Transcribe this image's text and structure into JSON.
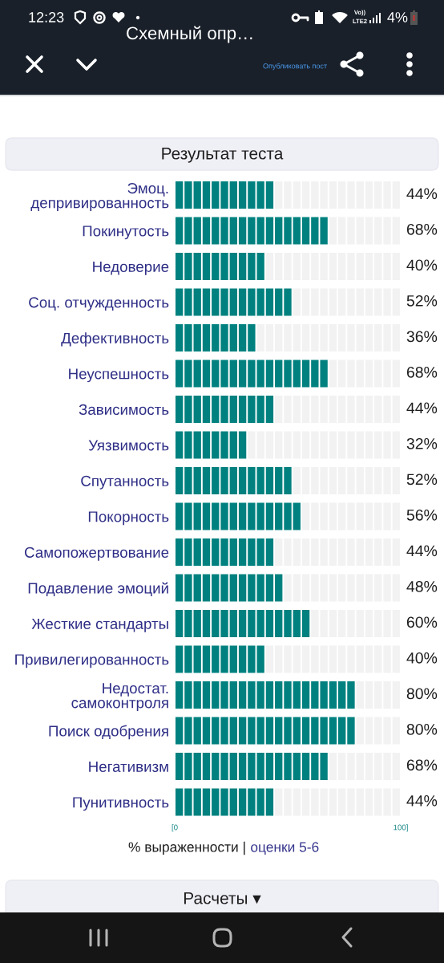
{
  "chart_data": {
    "type": "bar",
    "orientation": "horizontal",
    "stacked": true,
    "title": "Результат теста",
    "categories": [
      "Эмоц.\nдепривированность",
      "Покинутость",
      "Недоверие",
      "Соц. отчужденность",
      "Дефективность",
      "Неуспешность",
      "Зависимость",
      "Уязвимость",
      "Спутанность",
      "Покорность",
      "Самопожертвование",
      "Подавление эмоций",
      "Жесткие стандарты",
      "Привилегированность",
      "Недостат.\nсамоконтроля",
      "Поиск одобрения",
      "Негативизм",
      "Пунитивность"
    ],
    "series": [
      {
        "color": "#00817f",
        "values": [
          44,
          68,
          40,
          52,
          36,
          68,
          44,
          32,
          52,
          56,
          44,
          48,
          60,
          40,
          80,
          80,
          68,
          44
        ],
        "value_labels": [
          "44%",
          "68%",
          "40%",
          "52%",
          "36%",
          "68%",
          "44%",
          "32%",
          "52%",
          "56%",
          "44%",
          "48%",
          "60%",
          "40%",
          "80%",
          "80%",
          "68%",
          "44%"
        ]
      },
      {
        "color": "#f2f2f2",
        "values": [
          56,
          32,
          60,
          48,
          64,
          32,
          56,
          68,
          48,
          44,
          56,
          52,
          40,
          60,
          20,
          20,
          32,
          56
        ]
      }
    ],
    "xlim": [
      0,
      100
    ],
    "xticks": [
      {
        "value": 0,
        "label": "[0"
      },
      {
        "value": 4,
        "label": null
      },
      {
        "value": 8,
        "label": null
      },
      {
        "value": 12,
        "label": null
      },
      {
        "value": 16,
        "label": null
      },
      {
        "value": 20,
        "label": null
      },
      {
        "value": 24,
        "label": null
      },
      {
        "value": 28,
        "label": null
      },
      {
        "value": 32,
        "label": null
      },
      {
        "value": 36,
        "label": null
      },
      {
        "value": 40,
        "label": null
      },
      {
        "value": 44,
        "label": null
      },
      {
        "value": 48,
        "label": null
      },
      {
        "value": 52,
        "label": null
      },
      {
        "value": 56,
        "label": null
      },
      {
        "value": 60,
        "label": null
      },
      {
        "value": 64,
        "label": null
      },
      {
        "value": 68,
        "label": null
      },
      {
        "value": 72,
        "label": null
      },
      {
        "value": 76,
        "label": null
      },
      {
        "value": 80,
        "label": null
      },
      {
        "value": 84,
        "label": null
      },
      {
        "value": 88,
        "label": null
      },
      {
        "value": 92,
        "label": null
      },
      {
        "value": 96,
        "label": null
      },
      {
        "value": 100,
        "label": "100]"
      }
    ],
    "grid": "x",
    "annotations": [
      "12:23",
      "Vo))",
      "LTE2",
      "4%",
      "Схемный опр…",
      "Опубликовать пост",
      "% выраженности |",
      "оценки 5-6",
      "Расчеты ▾"
    ]
  }
}
